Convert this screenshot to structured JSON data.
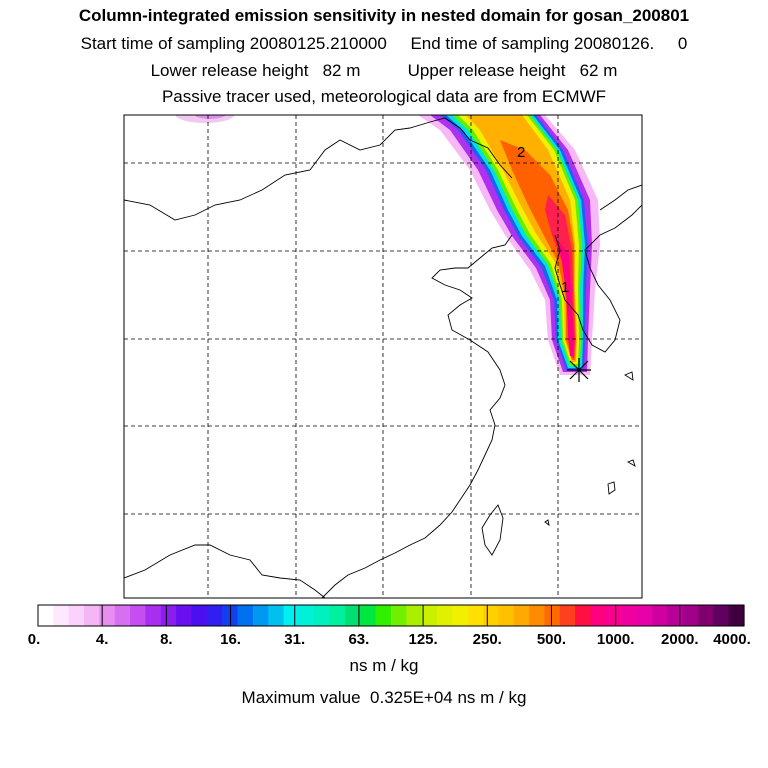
{
  "title": "Column-integrated emission sensitivity in nested domain for gosan_200801",
  "sampling": {
    "start_label": "Start time of sampling",
    "start_value": "20080125.210000",
    "end_label": "End time of sampling",
    "end_value": "20080126.     0",
    "text": "Start time of sampling 20080125.210000     End time of sampling 20080126.     0"
  },
  "release": {
    "text": "Lower release height   82 m          Upper release height   62 m"
  },
  "info": "Passive tracer used, meteorological data are from ECMWF",
  "plume_labels": [
    "2",
    "1"
  ],
  "colorbar": {
    "tick_labels": [
      "0.",
      "4.",
      "8.",
      "16.",
      "31.",
      "63.",
      "125.",
      "250.",
      "500.",
      "1000.",
      "2000.",
      "4000."
    ],
    "colors": [
      "#ffffff",
      "#fde8fd",
      "#fbd2fb",
      "#f5b6f5",
      "#e88ef0",
      "#d86ef0",
      "#c44ef0",
      "#a82ef0",
      "#8a1ef0",
      "#6a10f0",
      "#4a10f0",
      "#3020f0",
      "#1040f0",
      "#0070f0",
      "#0098f0",
      "#00c0f0",
      "#00f0f0",
      "#00f0d8",
      "#00f0c0",
      "#00f0a0",
      "#00e070",
      "#00e840",
      "#30f000",
      "#70f000",
      "#a8f000",
      "#c8f000",
      "#e0f000",
      "#f0f000",
      "#ffe000",
      "#ffd000",
      "#ffc000",
      "#ffaa00",
      "#ff8c00",
      "#ff6a00",
      "#ff4020",
      "#ff1040",
      "#ff0080",
      "#f80090",
      "#f000a0",
      "#e800a8",
      "#d000a0",
      "#b80098",
      "#a0008a",
      "#800070",
      "#600060",
      "#400040"
    ],
    "units": "ns m / kg"
  },
  "maximum": "Maximum value  0.325E+04 ns m / kg",
  "station_marker": "receptor-star"
}
